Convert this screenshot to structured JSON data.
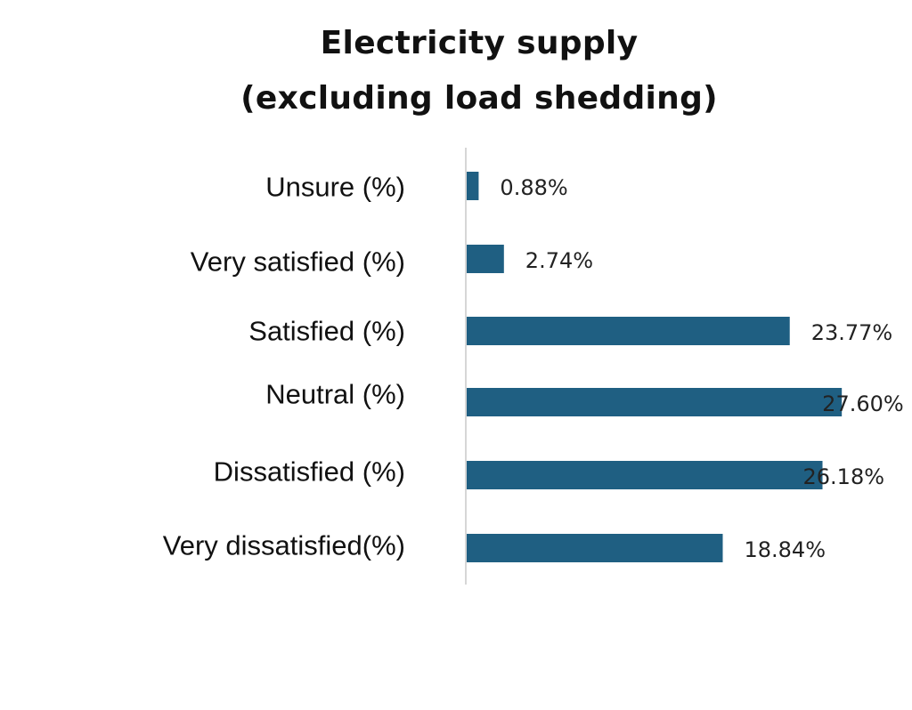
{
  "chart_data": {
    "type": "bar",
    "orientation": "horizontal",
    "title": [
      "Electricity supply",
      "(excluding load shedding)"
    ],
    "categories": [
      "Unsure (%)",
      "Very satisfied (%)",
      "Satisfied (%)",
      "Neutral (%)",
      "Dissatisfied (%)",
      "Very dissatisfied(%)"
    ],
    "values": [
      0.88,
      2.74,
      23.77,
      27.6,
      26.18,
      18.84
    ],
    "value_labels": [
      "0.88%",
      "2.74%",
      "23.77%",
      "27.60%",
      "26.18%",
      "18.84%"
    ],
    "xlim": [
      0,
      28
    ],
    "grid": false,
    "bar_color": "#1f5f82",
    "axis_color": "#c8c8c8"
  }
}
